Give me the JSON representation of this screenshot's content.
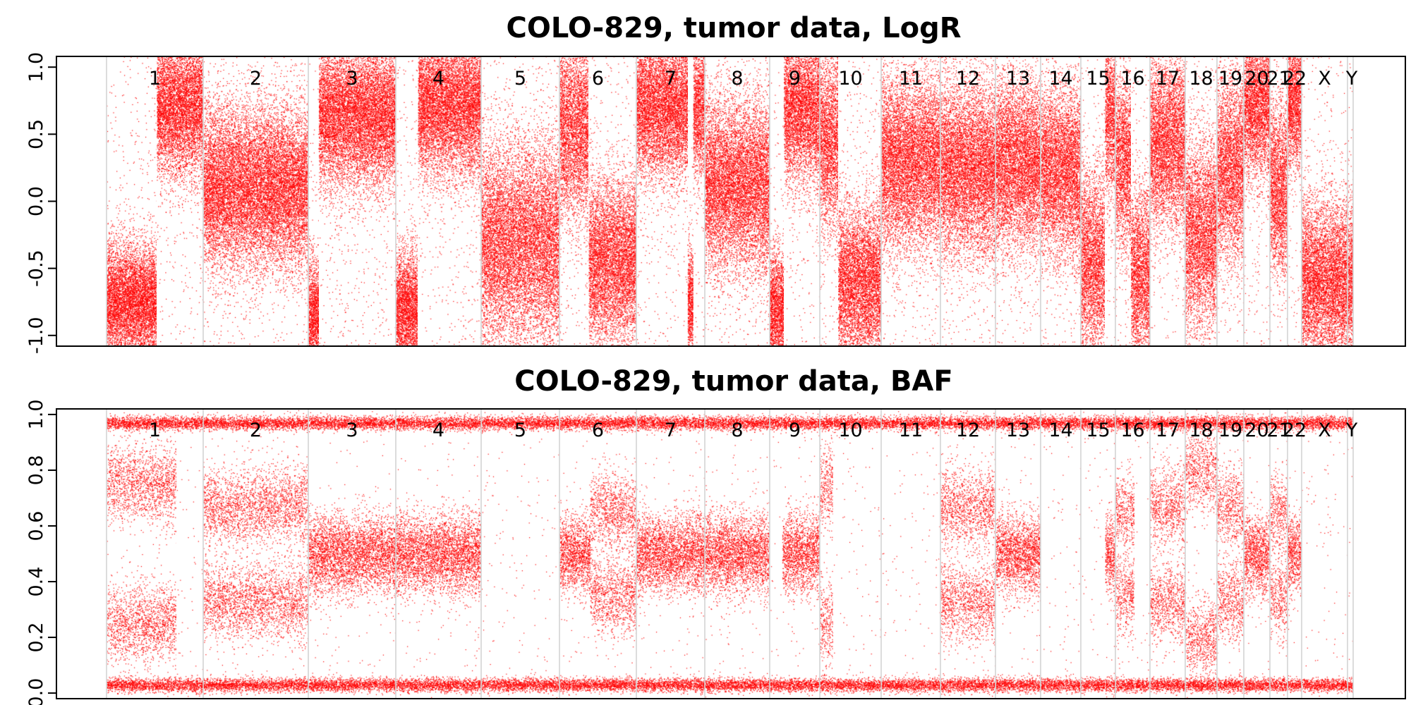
{
  "colors": {
    "points": "#ff0000",
    "boundary": "#d3d3d3",
    "frame": "#000000",
    "text": "#000000"
  },
  "chart_data": [
    {
      "type": "scatter",
      "title": "COLO-829, tumor data, LogR",
      "xlabel": "",
      "ylabel": "",
      "ylim": [
        -1.08,
        1.08
      ],
      "yticks": [
        "-1.0",
        "-0.5",
        "0.0",
        "0.5",
        "1.0"
      ],
      "grid": false,
      "legend": "none",
      "chromosomes": [
        "1",
        "2",
        "3",
        "4",
        "5",
        "6",
        "7",
        "8",
        "9",
        "10",
        "11",
        "12",
        "13",
        "14",
        "15",
        "16",
        "17",
        "18",
        "19",
        "20",
        "21",
        "22",
        "X",
        "Y"
      ],
      "segments": [
        {
          "chrom": "1",
          "start": 0.0,
          "end": 0.52,
          "mean": -0.75,
          "sd": 0.22
        },
        {
          "chrom": "1",
          "start": 0.52,
          "end": 1.0,
          "mean": 0.72,
          "sd": 0.26
        },
        {
          "chrom": "2",
          "start": 0.0,
          "end": 1.0,
          "mean": 0.1,
          "sd": 0.3
        },
        {
          "chrom": "3",
          "start": 0.0,
          "end": 0.12,
          "mean": -0.85,
          "sd": 0.2
        },
        {
          "chrom": "3",
          "start": 0.12,
          "end": 1.0,
          "mean": 0.65,
          "sd": 0.27
        },
        {
          "chrom": "4",
          "start": 0.0,
          "end": 0.26,
          "mean": -0.8,
          "sd": 0.22
        },
        {
          "chrom": "4",
          "start": 0.26,
          "end": 1.0,
          "mean": 0.72,
          "sd": 0.27
        },
        {
          "chrom": "5",
          "start": 0.0,
          "end": 1.0,
          "mean": -0.32,
          "sd": 0.38
        },
        {
          "chrom": "6",
          "start": 0.0,
          "end": 0.38,
          "mean": 0.55,
          "sd": 0.34
        },
        {
          "chrom": "6",
          "start": 0.38,
          "end": 1.0,
          "mean": -0.45,
          "sd": 0.32
        },
        {
          "chrom": "7",
          "start": 0.0,
          "end": 0.75,
          "mean": 0.72,
          "sd": 0.27
        },
        {
          "chrom": "7",
          "start": 0.75,
          "end": 0.83,
          "mean": -0.75,
          "sd": 0.2
        },
        {
          "chrom": "7",
          "start": 0.83,
          "end": 1.0,
          "mean": 0.72,
          "sd": 0.27
        },
        {
          "chrom": "8",
          "start": 0.0,
          "end": 1.0,
          "mean": 0.12,
          "sd": 0.32
        },
        {
          "chrom": "9",
          "start": 0.0,
          "end": 0.28,
          "mean": -0.8,
          "sd": 0.22
        },
        {
          "chrom": "9",
          "start": 0.28,
          "end": 1.0,
          "mean": 0.7,
          "sd": 0.27
        },
        {
          "chrom": "10",
          "start": 0.0,
          "end": 0.3,
          "mean": 0.45,
          "sd": 0.34
        },
        {
          "chrom": "10",
          "start": 0.3,
          "end": 1.0,
          "mean": -0.62,
          "sd": 0.3
        },
        {
          "chrom": "11",
          "start": 0.0,
          "end": 1.0,
          "mean": 0.3,
          "sd": 0.32
        },
        {
          "chrom": "12",
          "start": 0.0,
          "end": 1.0,
          "mean": 0.25,
          "sd": 0.32
        },
        {
          "chrom": "13",
          "start": 0.0,
          "end": 1.0,
          "mean": 0.28,
          "sd": 0.32
        },
        {
          "chrom": "14",
          "start": 0.0,
          "end": 1.0,
          "mean": 0.22,
          "sd": 0.32
        },
        {
          "chrom": "15",
          "start": 0.0,
          "end": 0.7,
          "mean": -0.45,
          "sd": 0.34
        },
        {
          "chrom": "15",
          "start": 0.7,
          "end": 1.0,
          "mean": 0.65,
          "sd": 0.3
        },
        {
          "chrom": "16",
          "start": 0.0,
          "end": 0.45,
          "mean": 0.3,
          "sd": 0.34
        },
        {
          "chrom": "16",
          "start": 0.45,
          "end": 1.0,
          "mean": -0.55,
          "sd": 0.32
        },
        {
          "chrom": "17",
          "start": 0.0,
          "end": 1.0,
          "mean": 0.45,
          "sd": 0.32
        },
        {
          "chrom": "18",
          "start": 0.0,
          "end": 1.0,
          "mean": -0.25,
          "sd": 0.35
        },
        {
          "chrom": "19",
          "start": 0.0,
          "end": 1.0,
          "mean": 0.25,
          "sd": 0.35
        },
        {
          "chrom": "20",
          "start": 0.0,
          "end": 1.0,
          "mean": 0.72,
          "sd": 0.27
        },
        {
          "chrom": "21",
          "start": 0.0,
          "end": 1.0,
          "mean": 0.1,
          "sd": 0.32
        },
        {
          "chrom": "22",
          "start": 0.0,
          "end": 1.0,
          "mean": 0.75,
          "sd": 0.25
        },
        {
          "chrom": "X",
          "start": 0.0,
          "end": 1.0,
          "mean": -0.6,
          "sd": 0.3
        },
        {
          "chrom": "Y",
          "start": 0.0,
          "end": 1.0,
          "mean": -0.6,
          "sd": 0.3
        }
      ]
    },
    {
      "type": "scatter",
      "title": "COLO-829, tumor data, BAF",
      "xlabel": "",
      "ylabel": "",
      "ylim": [
        -0.02,
        1.02
      ],
      "yticks": [
        "0.0",
        "0.2",
        "0.4",
        "0.6",
        "0.8",
        "1.0"
      ],
      "grid": false,
      "legend": "none",
      "chromosomes": [
        "1",
        "2",
        "3",
        "4",
        "5",
        "6",
        "7",
        "8",
        "9",
        "10",
        "11",
        "12",
        "13",
        "14",
        "15",
        "16",
        "17",
        "18",
        "19",
        "20",
        "21",
        "22",
        "X",
        "Y"
      ],
      "homozygous_bands": [
        0.03,
        0.97
      ],
      "segments": [
        {
          "chrom": "1",
          "start": 0.0,
          "end": 0.72,
          "baf_bands": [
            0.25,
            0.75
          ],
          "spread": 0.07
        },
        {
          "chrom": "1",
          "start": 0.72,
          "end": 1.0,
          "baf_bands": [],
          "spread": 0
        },
        {
          "chrom": "2",
          "start": 0.0,
          "end": 1.0,
          "baf_bands": [
            0.33,
            0.67
          ],
          "spread": 0.07
        },
        {
          "chrom": "3",
          "start": 0.0,
          "end": 1.0,
          "baf_bands": [
            0.5
          ],
          "spread": 0.07
        },
        {
          "chrom": "4",
          "start": 0.0,
          "end": 1.0,
          "baf_bands": [
            0.5
          ],
          "spread": 0.07
        },
        {
          "chrom": "5",
          "start": 0.0,
          "end": 1.0,
          "baf_bands": [],
          "spread": 0
        },
        {
          "chrom": "6",
          "start": 0.0,
          "end": 0.4,
          "baf_bands": [
            0.5
          ],
          "spread": 0.07
        },
        {
          "chrom": "6",
          "start": 0.4,
          "end": 1.0,
          "baf_bands": [
            0.35,
            0.65
          ],
          "spread": 0.07
        },
        {
          "chrom": "7",
          "start": 0.0,
          "end": 1.0,
          "baf_bands": [
            0.5
          ],
          "spread": 0.07
        },
        {
          "chrom": "8",
          "start": 0.0,
          "end": 1.0,
          "baf_bands": [
            0.5
          ],
          "spread": 0.07
        },
        {
          "chrom": "9",
          "start": 0.0,
          "end": 0.25,
          "baf_bands": [],
          "spread": 0
        },
        {
          "chrom": "9",
          "start": 0.25,
          "end": 1.0,
          "baf_bands": [
            0.5
          ],
          "spread": 0.07
        },
        {
          "chrom": "10",
          "start": 0.0,
          "end": 0.22,
          "baf_bands": [
            0.25,
            0.75
          ],
          "spread": 0.08
        },
        {
          "chrom": "10",
          "start": 0.22,
          "end": 1.0,
          "baf_bands": [],
          "spread": 0
        },
        {
          "chrom": "11",
          "start": 0.0,
          "end": 1.0,
          "baf_bands": [],
          "spread": 0
        },
        {
          "chrom": "12",
          "start": 0.0,
          "end": 1.0,
          "baf_bands": [
            0.33,
            0.67
          ],
          "spread": 0.07
        },
        {
          "chrom": "13",
          "start": 0.0,
          "end": 1.0,
          "baf_bands": [
            0.5
          ],
          "spread": 0.07
        },
        {
          "chrom": "14",
          "start": 0.0,
          "end": 1.0,
          "baf_bands": [],
          "spread": 0
        },
        {
          "chrom": "15",
          "start": 0.0,
          "end": 0.7,
          "baf_bands": [],
          "spread": 0
        },
        {
          "chrom": "15",
          "start": 0.7,
          "end": 1.0,
          "baf_bands": [
            0.5
          ],
          "spread": 0.07
        },
        {
          "chrom": "16",
          "start": 0.0,
          "end": 0.55,
          "baf_bands": [
            0.35,
            0.65
          ],
          "spread": 0.07
        },
        {
          "chrom": "16",
          "start": 0.55,
          "end": 1.0,
          "baf_bands": [],
          "spread": 0
        },
        {
          "chrom": "17",
          "start": 0.0,
          "end": 1.0,
          "baf_bands": [
            0.33,
            0.67
          ],
          "spread": 0.07
        },
        {
          "chrom": "18",
          "start": 0.0,
          "end": 1.0,
          "baf_bands": [
            0.2,
            0.8
          ],
          "spread": 0.07
        },
        {
          "chrom": "19",
          "start": 0.0,
          "end": 1.0,
          "baf_bands": [
            0.33,
            0.67
          ],
          "spread": 0.07
        },
        {
          "chrom": "20",
          "start": 0.0,
          "end": 1.0,
          "baf_bands": [
            0.5
          ],
          "spread": 0.07
        },
        {
          "chrom": "21",
          "start": 0.0,
          "end": 1.0,
          "baf_bands": [
            0.35,
            0.65
          ],
          "spread": 0.07
        },
        {
          "chrom": "22",
          "start": 0.0,
          "end": 1.0,
          "baf_bands": [
            0.5
          ],
          "spread": 0.07
        },
        {
          "chrom": "X",
          "start": 0.0,
          "end": 1.0,
          "baf_bands": [],
          "spread": 0
        },
        {
          "chrom": "Y",
          "start": 0.0,
          "end": 1.0,
          "baf_bands": [],
          "spread": 0
        }
      ]
    }
  ]
}
